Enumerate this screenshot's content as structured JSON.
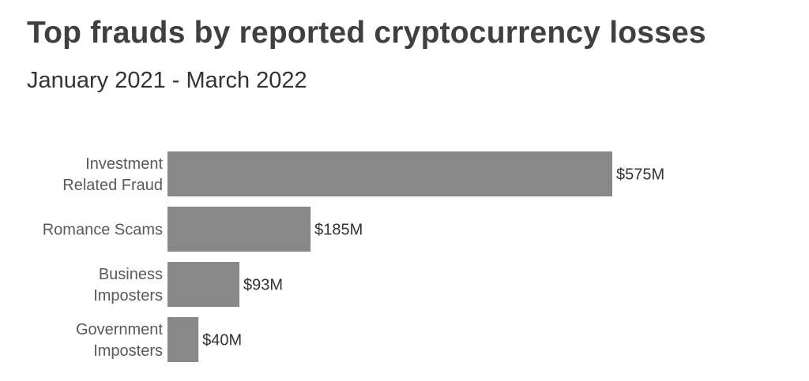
{
  "title": "Top frauds by reported cryptocurrency losses",
  "subtitle": "January 2021 - March 2022",
  "colors": {
    "bar": "#888888",
    "category_text": "#595959",
    "value_text": "#333333"
  },
  "chart_data": {
    "type": "bar",
    "orientation": "horizontal",
    "title": "Top frauds by reported cryptocurrency losses",
    "subtitle": "January 2021 - March 2022",
    "categories": [
      [
        "Investment",
        "Related Fraud"
      ],
      [
        "Romance Scams"
      ],
      [
        "Business",
        "Imposters"
      ],
      [
        "Government",
        "Imposters"
      ]
    ],
    "values": [
      575,
      185,
      93,
      40
    ],
    "value_labels": [
      "$575M",
      "$185M",
      "$93M",
      "$40M"
    ],
    "units": "$M",
    "xlim": [
      0,
      575
    ],
    "grid": false,
    "legend": "none"
  }
}
